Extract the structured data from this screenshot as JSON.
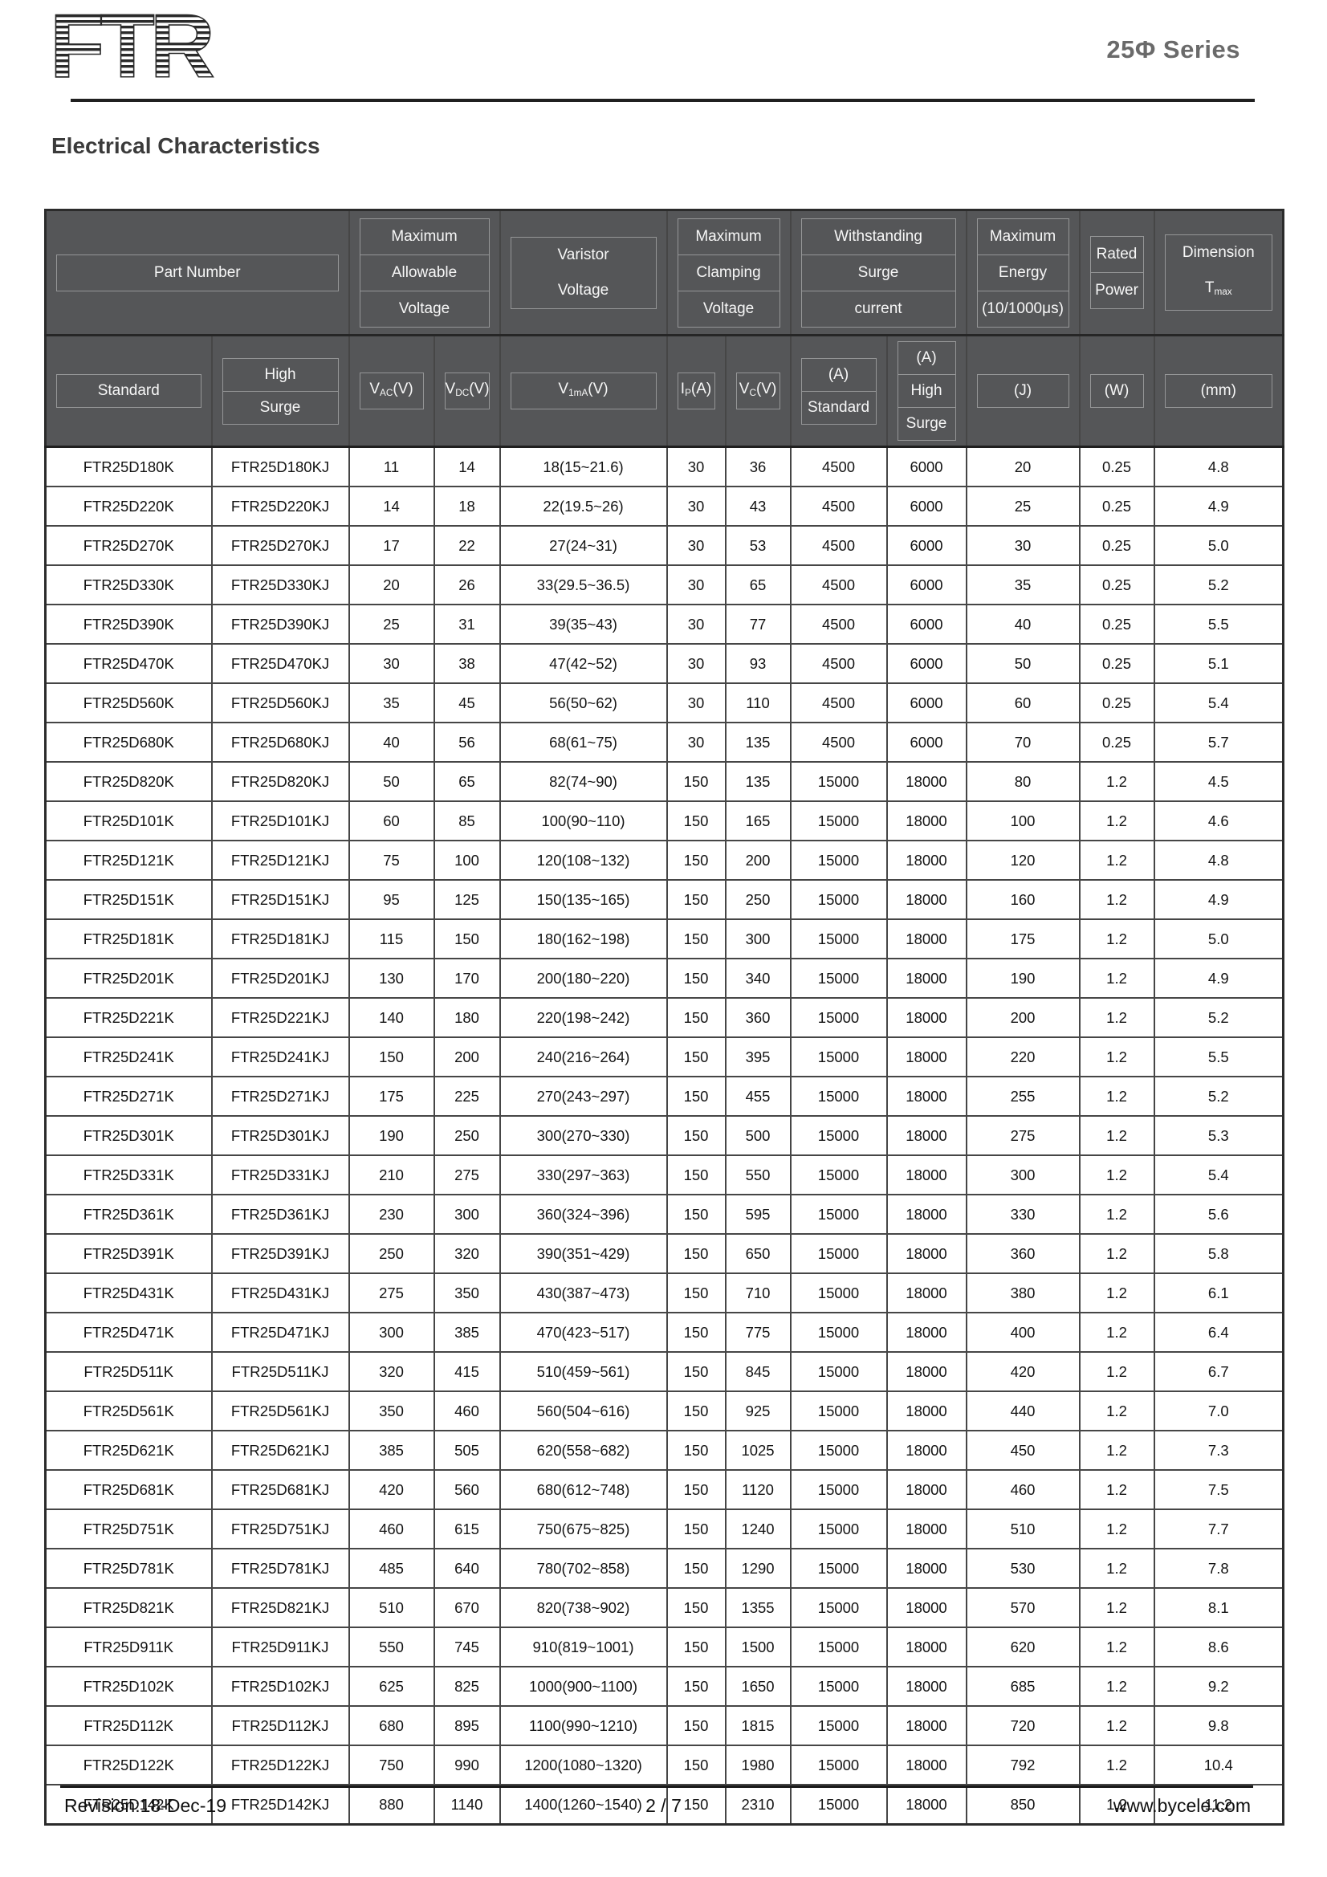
{
  "page": {
    "logo_text": "FTR",
    "series_title": "25Φ Series",
    "section_title": "Electrical Characteristics"
  },
  "table": {
    "groups": {
      "part_number": "Part Number",
      "max_allowable_voltage": [
        "Maximum",
        "Allowable",
        "Voltage"
      ],
      "varistor_voltage": [
        "Varistor",
        "Voltage"
      ],
      "max_clamping_voltage": [
        "Maximum",
        "Clamping",
        "Voltage"
      ],
      "withstanding_surge_current": [
        "Withstanding",
        "Surge",
        "current"
      ],
      "maximum_energy": [
        "Maximum",
        "Energy",
        "(10/1000μs)"
      ],
      "rated_power": [
        "Rated",
        "Power"
      ],
      "dimension_line1": "Dimension",
      "dimension_t": {
        "pre": "T",
        "sub": "max"
      }
    },
    "sub_headers": {
      "standard": "Standard",
      "high_surge": [
        "High",
        "Surge"
      ],
      "vac": {
        "pre": "V",
        "sub": "AC",
        "post": "(V)"
      },
      "vdc": {
        "pre": "V",
        "sub": "DC",
        "post": "(V)"
      },
      "v1ma": {
        "pre": "V",
        "sub": "1mA",
        "post": "(V)"
      },
      "ip": {
        "pre": "I",
        "sub": "P",
        "post": "(A)"
      },
      "vc": {
        "pre": "V",
        "sub": "C",
        "post": "(V)"
      },
      "a_standard": [
        "(A)",
        "Standard"
      ],
      "a_high_surge": [
        "(A)",
        "High",
        "Surge"
      ],
      "j": "(J)",
      "w": "(W)",
      "mm": "(mm)"
    },
    "col_names": [
      "cell-part-standard",
      "cell-part-high-surge",
      "cell-vac",
      "cell-vdc",
      "cell-v1ma",
      "cell-ip",
      "cell-vc",
      "cell-surge-standard",
      "cell-surge-high",
      "cell-energy",
      "cell-power",
      "cell-dimension"
    ],
    "rows": [
      [
        "FTR25D180K",
        "FTR25D180KJ",
        "11",
        "14",
        "18(15~21.6)",
        "30",
        "36",
        "4500",
        "6000",
        "20",
        "0.25",
        "4.8"
      ],
      [
        "FTR25D220K",
        "FTR25D220KJ",
        "14",
        "18",
        "22(19.5~26)",
        "30",
        "43",
        "4500",
        "6000",
        "25",
        "0.25",
        "4.9"
      ],
      [
        "FTR25D270K",
        "FTR25D270KJ",
        "17",
        "22",
        "27(24~31)",
        "30",
        "53",
        "4500",
        "6000",
        "30",
        "0.25",
        "5.0"
      ],
      [
        "FTR25D330K",
        "FTR25D330KJ",
        "20",
        "26",
        "33(29.5~36.5)",
        "30",
        "65",
        "4500",
        "6000",
        "35",
        "0.25",
        "5.2"
      ],
      [
        "FTR25D390K",
        "FTR25D390KJ",
        "25",
        "31",
        "39(35~43)",
        "30",
        "77",
        "4500",
        "6000",
        "40",
        "0.25",
        "5.5"
      ],
      [
        "FTR25D470K",
        "FTR25D470KJ",
        "30",
        "38",
        "47(42~52)",
        "30",
        "93",
        "4500",
        "6000",
        "50",
        "0.25",
        "5.1"
      ],
      [
        "FTR25D560K",
        "FTR25D560KJ",
        "35",
        "45",
        "56(50~62)",
        "30",
        "110",
        "4500",
        "6000",
        "60",
        "0.25",
        "5.4"
      ],
      [
        "FTR25D680K",
        "FTR25D680KJ",
        "40",
        "56",
        "68(61~75)",
        "30",
        "135",
        "4500",
        "6000",
        "70",
        "0.25",
        "5.7"
      ],
      [
        "FTR25D820K",
        "FTR25D820KJ",
        "50",
        "65",
        "82(74~90)",
        "150",
        "135",
        "15000",
        "18000",
        "80",
        "1.2",
        "4.5"
      ],
      [
        "FTR25D101K",
        "FTR25D101KJ",
        "60",
        "85",
        "100(90~110)",
        "150",
        "165",
        "15000",
        "18000",
        "100",
        "1.2",
        "4.6"
      ],
      [
        "FTR25D121K",
        "FTR25D121KJ",
        "75",
        "100",
        "120(108~132)",
        "150",
        "200",
        "15000",
        "18000",
        "120",
        "1.2",
        "4.8"
      ],
      [
        "FTR25D151K",
        "FTR25D151KJ",
        "95",
        "125",
        "150(135~165)",
        "150",
        "250",
        "15000",
        "18000",
        "160",
        "1.2",
        "4.9"
      ],
      [
        "FTR25D181K",
        "FTR25D181KJ",
        "115",
        "150",
        "180(162~198)",
        "150",
        "300",
        "15000",
        "18000",
        "175",
        "1.2",
        "5.0"
      ],
      [
        "FTR25D201K",
        "FTR25D201KJ",
        "130",
        "170",
        "200(180~220)",
        "150",
        "340",
        "15000",
        "18000",
        "190",
        "1.2",
        "4.9"
      ],
      [
        "FTR25D221K",
        "FTR25D221KJ",
        "140",
        "180",
        "220(198~242)",
        "150",
        "360",
        "15000",
        "18000",
        "200",
        "1.2",
        "5.2"
      ],
      [
        "FTR25D241K",
        "FTR25D241KJ",
        "150",
        "200",
        "240(216~264)",
        "150",
        "395",
        "15000",
        "18000",
        "220",
        "1.2",
        "5.5"
      ],
      [
        "FTR25D271K",
        "FTR25D271KJ",
        "175",
        "225",
        "270(243~297)",
        "150",
        "455",
        "15000",
        "18000",
        "255",
        "1.2",
        "5.2"
      ],
      [
        "FTR25D301K",
        "FTR25D301KJ",
        "190",
        "250",
        "300(270~330)",
        "150",
        "500",
        "15000",
        "18000",
        "275",
        "1.2",
        "5.3"
      ],
      [
        "FTR25D331K",
        "FTR25D331KJ",
        "210",
        "275",
        "330(297~363)",
        "150",
        "550",
        "15000",
        "18000",
        "300",
        "1.2",
        "5.4"
      ],
      [
        "FTR25D361K",
        "FTR25D361KJ",
        "230",
        "300",
        "360(324~396)",
        "150",
        "595",
        "15000",
        "18000",
        "330",
        "1.2",
        "5.6"
      ],
      [
        "FTR25D391K",
        "FTR25D391KJ",
        "250",
        "320",
        "390(351~429)",
        "150",
        "650",
        "15000",
        "18000",
        "360",
        "1.2",
        "5.8"
      ],
      [
        "FTR25D431K",
        "FTR25D431KJ",
        "275",
        "350",
        "430(387~473)",
        "150",
        "710",
        "15000",
        "18000",
        "380",
        "1.2",
        "6.1"
      ],
      [
        "FTR25D471K",
        "FTR25D471KJ",
        "300",
        "385",
        "470(423~517)",
        "150",
        "775",
        "15000",
        "18000",
        "400",
        "1.2",
        "6.4"
      ],
      [
        "FTR25D511K",
        "FTR25D511KJ",
        "320",
        "415",
        "510(459~561)",
        "150",
        "845",
        "15000",
        "18000",
        "420",
        "1.2",
        "6.7"
      ],
      [
        "FTR25D561K",
        "FTR25D561KJ",
        "350",
        "460",
        "560(504~616)",
        "150",
        "925",
        "15000",
        "18000",
        "440",
        "1.2",
        "7.0"
      ],
      [
        "FTR25D621K",
        "FTR25D621KJ",
        "385",
        "505",
        "620(558~682)",
        "150",
        "1025",
        "15000",
        "18000",
        "450",
        "1.2",
        "7.3"
      ],
      [
        "FTR25D681K",
        "FTR25D681KJ",
        "420",
        "560",
        "680(612~748)",
        "150",
        "1120",
        "15000",
        "18000",
        "460",
        "1.2",
        "7.5"
      ],
      [
        "FTR25D751K",
        "FTR25D751KJ",
        "460",
        "615",
        "750(675~825)",
        "150",
        "1240",
        "15000",
        "18000",
        "510",
        "1.2",
        "7.7"
      ],
      [
        "FTR25D781K",
        "FTR25D781KJ",
        "485",
        "640",
        "780(702~858)",
        "150",
        "1290",
        "15000",
        "18000",
        "530",
        "1.2",
        "7.8"
      ],
      [
        "FTR25D821K",
        "FTR25D821KJ",
        "510",
        "670",
        "820(738~902)",
        "150",
        "1355",
        "15000",
        "18000",
        "570",
        "1.2",
        "8.1"
      ],
      [
        "FTR25D911K",
        "FTR25D911KJ",
        "550",
        "745",
        "910(819~1001)",
        "150",
        "1500",
        "15000",
        "18000",
        "620",
        "1.2",
        "8.6"
      ],
      [
        "FTR25D102K",
        "FTR25D102KJ",
        "625",
        "825",
        "1000(900~1100)",
        "150",
        "1650",
        "15000",
        "18000",
        "685",
        "1.2",
        "9.2"
      ],
      [
        "FTR25D112K",
        "FTR25D112KJ",
        "680",
        "895",
        "1100(990~1210)",
        "150",
        "1815",
        "15000",
        "18000",
        "720",
        "1.2",
        "9.8"
      ],
      [
        "FTR25D122K",
        "FTR25D122KJ",
        "750",
        "990",
        "1200(1080~1320)",
        "150",
        "1980",
        "15000",
        "18000",
        "792",
        "1.2",
        "10.4"
      ],
      [
        "FTR25D142K",
        "FTR25D142KJ",
        "880",
        "1140",
        "1400(1260~1540)",
        "150",
        "2310",
        "15000",
        "18000",
        "850",
        "1.2",
        "11.2"
      ]
    ]
  },
  "footer": {
    "revision": "Revision:18-Dec-19",
    "page_number": "2 / 7",
    "website": "www.bycele.com"
  },
  "colors": {
    "header_bg": "#555658",
    "header_text": "#f7f7f7",
    "grid_line": "#464646",
    "title_text": "#3b3b3b",
    "series_text": "#6a6a6a"
  }
}
